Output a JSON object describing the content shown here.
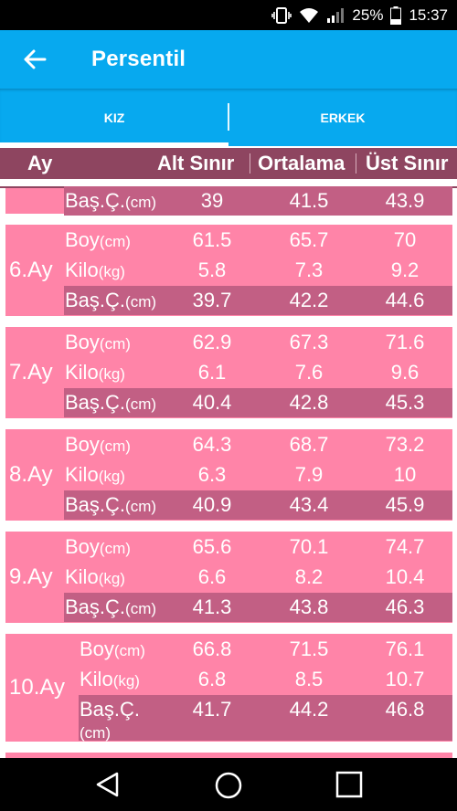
{
  "status": {
    "battery": "25%",
    "time": "15:37"
  },
  "appbar": {
    "title": "Persentil"
  },
  "tabs": [
    {
      "label": "KIZ"
    },
    {
      "label": "ERKEK"
    }
  ],
  "header": {
    "ay": "Ay",
    "alt": "Alt Sınır",
    "ort": "Ortalama",
    "ust": "Üst Sınır"
  },
  "partial_row": {
    "label": "Baş.Ç.",
    "unit": "(cm)",
    "alt": "39",
    "ort": "41.5",
    "ust": "43.9"
  },
  "months": [
    {
      "age": "6.Ay",
      "rows": [
        {
          "label": "Boy",
          "unit": "(cm)",
          "alt": "61.5",
          "ort": "65.7",
          "ust": "70"
        },
        {
          "label": "Kilo",
          "unit": "(kg)",
          "alt": "5.8",
          "ort": "7.3",
          "ust": "9.2"
        },
        {
          "label": "Baş.Ç.",
          "unit": "(cm)",
          "alt": "39.7",
          "ort": "42.2",
          "ust": "44.6"
        }
      ]
    },
    {
      "age": "7.Ay",
      "rows": [
        {
          "label": "Boy",
          "unit": "(cm)",
          "alt": "62.9",
          "ort": "67.3",
          "ust": "71.6"
        },
        {
          "label": "Kilo",
          "unit": "(kg)",
          "alt": "6.1",
          "ort": "7.6",
          "ust": "9.6"
        },
        {
          "label": "Baş.Ç.",
          "unit": "(cm)",
          "alt": "40.4",
          "ort": "42.8",
          "ust": "45.3"
        }
      ]
    },
    {
      "age": "8.Ay",
      "rows": [
        {
          "label": "Boy",
          "unit": "(cm)",
          "alt": "64.3",
          "ort": "68.7",
          "ust": "73.2"
        },
        {
          "label": "Kilo",
          "unit": "(kg)",
          "alt": "6.3",
          "ort": "7.9",
          "ust": "10"
        },
        {
          "label": "Baş.Ç.",
          "unit": "(cm)",
          "alt": "40.9",
          "ort": "43.4",
          "ust": "45.9"
        }
      ]
    },
    {
      "age": "9.Ay",
      "rows": [
        {
          "label": "Boy",
          "unit": "(cm)",
          "alt": "65.6",
          "ort": "70.1",
          "ust": "74.7"
        },
        {
          "label": "Kilo",
          "unit": "(kg)",
          "alt": "6.6",
          "ort": "8.2",
          "ust": "10.4"
        },
        {
          "label": "Baş.Ç.",
          "unit": "(cm)",
          "alt": "41.3",
          "ort": "43.8",
          "ust": "46.3"
        }
      ]
    },
    {
      "age": "10.Ay",
      "rows": [
        {
          "label": "Boy",
          "unit": "(cm)",
          "alt": "66.8",
          "ort": "71.5",
          "ust": "76.1"
        },
        {
          "label": "Kilo",
          "unit": "(kg)",
          "alt": "6.8",
          "ort": "8.5",
          "ust": "10.7"
        },
        {
          "label": "Baş.Ç.",
          "unit": "(cm)",
          "alt": "41.7",
          "ort": "44.2",
          "ust": "46.8"
        }
      ]
    }
  ],
  "colors": {
    "appbar": "#07a9ef",
    "header": "#8e4560",
    "card": "#ff84a8",
    "row_dark": "#c25f84"
  },
  "icons": {
    "back": "arrow-back-icon",
    "nav": [
      "back-triangle-icon",
      "home-circle-icon",
      "recents-square-icon"
    ]
  }
}
